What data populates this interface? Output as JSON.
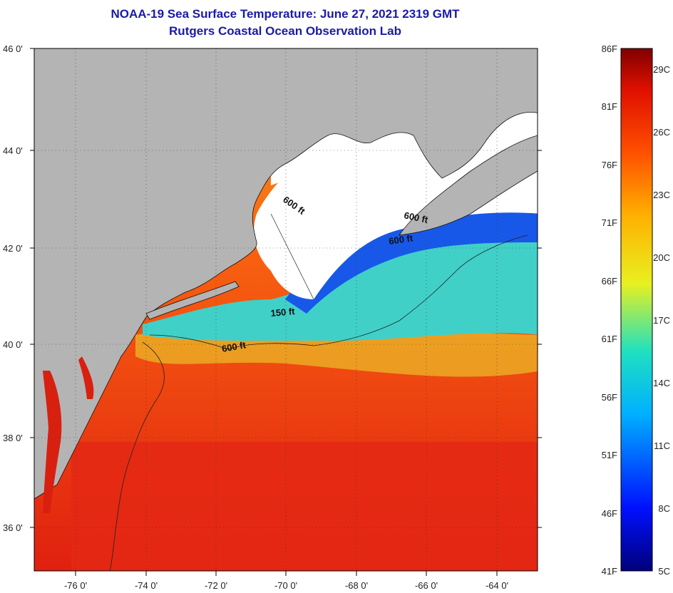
{
  "title": {
    "line1": "NOAA-19 Sea Surface Temperature:  June 27, 2021 2319 GMT",
    "line2": "Rutgers Coastal Ocean Observation Lab"
  },
  "map": {
    "lat_labels": [
      "46 0'",
      "44 0'",
      "42 0'",
      "40 0'",
      "38 0'",
      "36 0'"
    ],
    "lon_labels": [
      "-76 0'",
      "-74 0'",
      "-72 0'",
      "-70 0'",
      "-68 0'",
      "-66 0'",
      "-64 0'"
    ],
    "contour_labels": [
      "600 ft",
      "600 ft",
      "600 ft",
      "150 ft",
      "600 ft"
    ],
    "colors": {
      "land": "#b4b4b4",
      "cloud": "#ffffff",
      "cold": "#1040e0",
      "cool": "#20c8e0",
      "mild": "#f0e020",
      "warm": "#f86010",
      "hot": "#e02010"
    }
  },
  "colorbar": {
    "f_labels": [
      "86F",
      "81F",
      "76F",
      "71F",
      "66F",
      "61F",
      "56F",
      "51F",
      "46F",
      "41F"
    ],
    "c_labels": [
      "29C",
      "26C",
      "23C",
      "20C",
      "17C",
      "14C",
      "11C",
      "8C",
      "5C"
    ]
  }
}
